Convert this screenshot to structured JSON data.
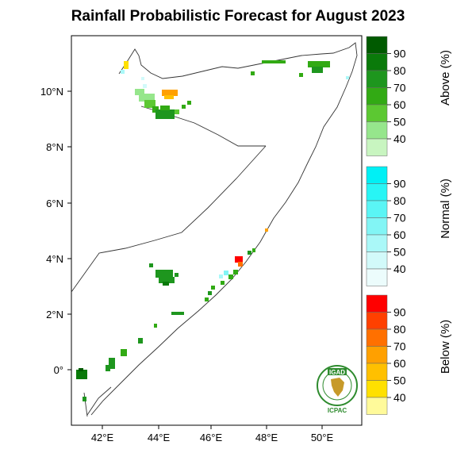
{
  "title": "Rainfall Probabilistic Forecast for August 2023",
  "axes": {
    "lon_ticks": [
      "42°E",
      "44°E",
      "46°E",
      "48°E",
      "50°E"
    ],
    "lat_ticks": [
      "10°N",
      "8°N",
      "6°N",
      "4°N",
      "2°N",
      "0°"
    ]
  },
  "legend": {
    "above": {
      "label": "Above (%)",
      "values": [
        "90",
        "80",
        "70",
        "60",
        "50",
        "40"
      ],
      "colors": [
        "#005a00",
        "#0a7a0a",
        "#1e961e",
        "#32aa14",
        "#5cc832",
        "#96e68c",
        "#c8f5c0"
      ]
    },
    "normal": {
      "label": "Normal (%)",
      "values": [
        "90",
        "80",
        "70",
        "60",
        "50",
        "40"
      ],
      "colors": [
        "#00f0f5",
        "#28f5f5",
        "#5af5f5",
        "#82f5f5",
        "#aaf8f8",
        "#d2fafa",
        "#ecfcfc"
      ]
    },
    "below": {
      "label": "Below (%)",
      "values": [
        "90",
        "80",
        "70",
        "60",
        "50",
        "40"
      ],
      "colors": [
        "#ff0000",
        "#ff4000",
        "#ff7000",
        "#ffa000",
        "#ffc000",
        "#ffe000",
        "#fffa9a"
      ]
    }
  },
  "logo": {
    "top_text": "IGAD",
    "bottom_text": "ICPAC"
  }
}
